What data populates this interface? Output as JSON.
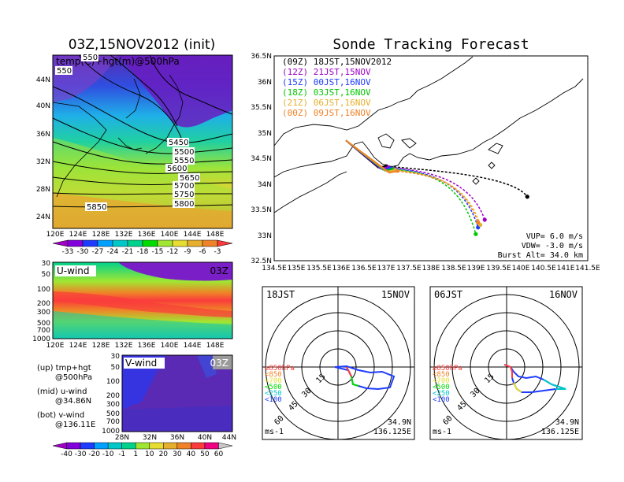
{
  "left": {
    "title": "03Z,15NOV2012 (init)",
    "map_label": "temp(C)+hgt(m)@500hPa",
    "contours": [
      "5850",
      "5800",
      "5750",
      "5700",
      "5650",
      "5600",
      "5550",
      "5500",
      "5450",
      "550",
      "5500"
    ],
    "lat_ticks": [
      "44N",
      "40N",
      "36N",
      "32N",
      "28N",
      "24N"
    ],
    "lon_ticks": [
      "120E",
      "124E",
      "128E",
      "132E",
      "136E",
      "140E",
      "144E",
      "148E"
    ],
    "temp_scale": [
      "-33",
      "-30",
      "-27",
      "-24",
      "-21",
      "-18",
      "-15",
      "-12",
      "-9",
      "-6",
      "-3"
    ],
    "temp_colors": [
      "#a000c8",
      "#8200dc",
      "#1e3cff",
      "#00a0ff",
      "#00c8c8",
      "#00d28c",
      "#00dc00",
      "#a0e632",
      "#e6dc32",
      "#e6af2d",
      "#f08228",
      "#fa3c3c"
    ]
  },
  "uwind": {
    "label": "U-wind",
    "time": "03Z",
    "p_ticks": [
      "30",
      "50",
      "100",
      "200",
      "300",
      "500",
      "700",
      "1000"
    ],
    "lon_ticks": [
      "120E",
      "124E",
      "128E",
      "132E",
      "136E",
      "140E",
      "144E",
      "148E"
    ]
  },
  "vwind": {
    "label": "V-wind",
    "time": "03Z",
    "p_ticks": [
      "30",
      "50",
      "100",
      "200",
      "300",
      "500",
      "700",
      "1000"
    ],
    "lat_ticks": [
      "28N",
      "32N",
      "36N",
      "40N",
      "44N"
    ]
  },
  "legend": {
    "up": "(up) tmp+hgt",
    "up2": "@500hPa",
    "mid": "(mid) u-wind",
    "mid2": "@34.86N",
    "bot": "(bot) v-wind",
    "bot2": "@136.11E"
  },
  "wind_scale": [
    "-40",
    "-30",
    "-20",
    "-10",
    "-1",
    "1",
    "10",
    "20",
    "30",
    "40",
    "50",
    "60"
  ],
  "wind_colors": [
    "#a000c8",
    "#8200dc",
    "#1e3cff",
    "#00a0ff",
    "#00c8c8",
    "#00d28c",
    "#a0e632",
    "#e6dc32",
    "#e6af2d",
    "#f08228",
    "#fa3c3c",
    "#f00082"
  ],
  "forecast": {
    "title": "Sonde Tracking Forecast",
    "entries": [
      {
        "label": "(09Z)  18JST,15NOV2012",
        "color": "#000000"
      },
      {
        "label": "(12Z)  21JST,15NOV",
        "color": "#a000c8"
      },
      {
        "label": "(15Z)  00JST,16NOV",
        "color": "#1e3cff"
      },
      {
        "label": "(18Z)  03JST,16NOV",
        "color": "#00c800"
      },
      {
        "label": "(21Z)  06JST,16NOV",
        "color": "#e6af2d"
      },
      {
        "label": "(00Z)  09JST,16NOV",
        "color": "#f08228"
      }
    ],
    "lat_ticks": [
      "36.5N",
      "36N",
      "35.5N",
      "35N",
      "34.5N",
      "34N",
      "33.5N",
      "33N",
      "32.5N"
    ],
    "lon_ticks": [
      "134.5E",
      "135E",
      "135.5E",
      "136E",
      "136.5E",
      "137E",
      "137.5E",
      "138E",
      "138.5E",
      "139E",
      "139.5E",
      "140E",
      "140.5E",
      "141E",
      "141.5E"
    ],
    "vup": "VUP=  6.0  m/s",
    "vdw": "VDW= -3.0  m/s",
    "burst": "Burst Alt=  34.0  km"
  },
  "hodo1": {
    "time": "18JST",
    "date": "15NOV",
    "lat": "34.9N",
    "lon": "136.125E",
    "unit": "ms-1"
  },
  "hodo2": {
    "time": "06JST",
    "date": "16NOV",
    "lat": "34.9N",
    "lon": "136.125E",
    "unit": "ms-1"
  },
  "hodo_rings": [
    "15",
    "30",
    "45",
    "60"
  ],
  "hodo_levels": [
    {
      "label": "≥850hPa",
      "color": "#fa3c3c"
    },
    {
      "label": "<850",
      "color": "#f08228"
    },
    {
      "label": "<700",
      "color": "#e6dc32"
    },
    {
      "label": "<500",
      "color": "#00dc00"
    },
    {
      "label": "<250",
      "color": "#00c8c8"
    },
    {
      "label": "<100",
      "color": "#1e3cff"
    }
  ]
}
